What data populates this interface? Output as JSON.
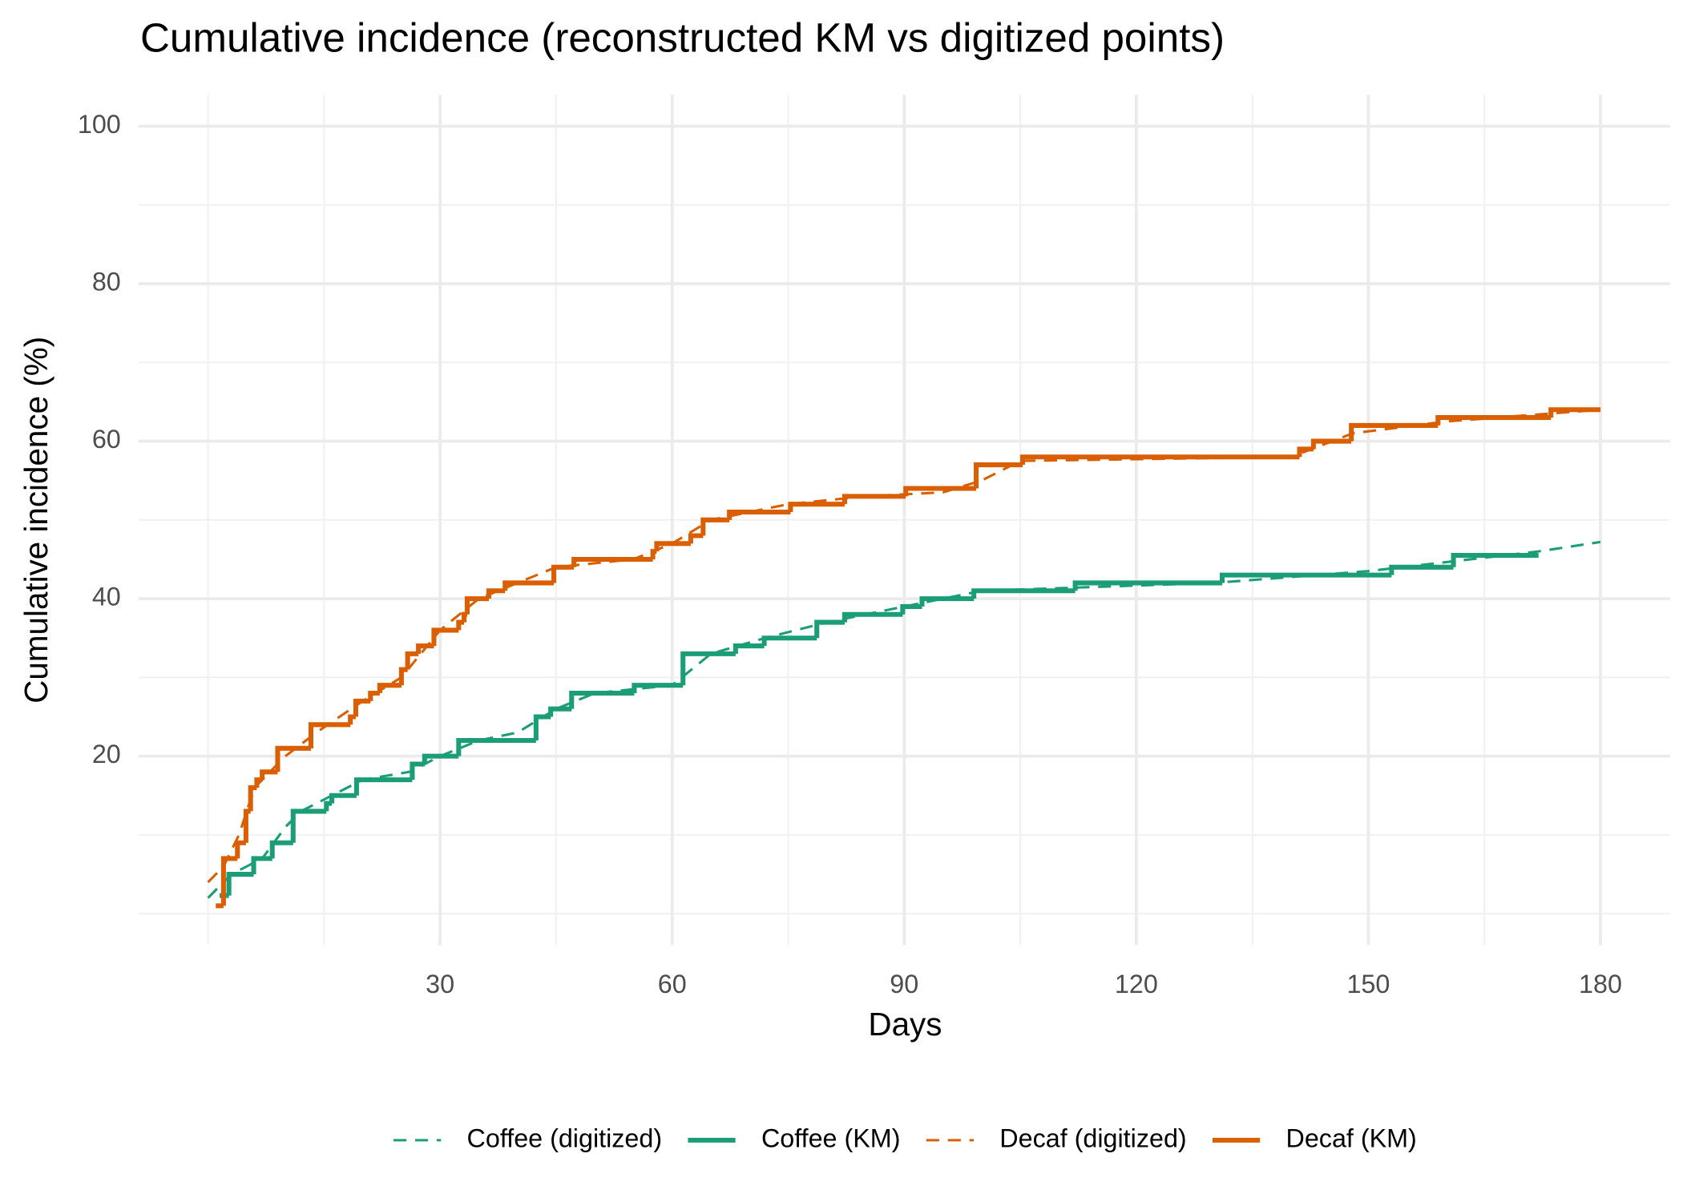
{
  "chart_data": {
    "type": "line",
    "title": "Cumulative incidence (reconstructed KM vs digitized points)",
    "x_label": "Days",
    "y_label": "Cumulative incidence (%)",
    "xlim": [
      -9,
      189
    ],
    "ylim": [
      -4,
      104
    ],
    "xticks": [
      30,
      60,
      90,
      120,
      150,
      180
    ],
    "yticks": [
      20,
      40,
      60,
      80,
      100
    ],
    "x_minor_grid": [
      0,
      15,
      45,
      75,
      105,
      135,
      165
    ],
    "y_minor_grid": [
      0,
      10,
      30,
      50,
      70,
      90
    ],
    "grid": true,
    "legend_position": "bottom",
    "series": [
      {
        "name": "Coffee (digitized)",
        "color": "#1b9e77",
        "style": "dashed",
        "x": [
          0,
          3,
          7,
          10,
          12,
          16,
          20,
          26,
          30,
          35,
          40,
          45,
          50,
          60,
          65,
          72,
          80,
          90,
          100,
          115,
          130,
          150,
          172,
          180
        ],
        "values": [
          2,
          5,
          7,
          11,
          13,
          15,
          17,
          18,
          20,
          22,
          23,
          26,
          28,
          29,
          33,
          35,
          37,
          39,
          41,
          41.5,
          42,
          43.5,
          46,
          47.2
        ]
      },
      {
        "name": "Coffee (KM)",
        "color": "#1b9e77",
        "style": "step",
        "x": [
          1.5,
          2.7,
          5.9,
          8.3,
          11,
          15.3,
          16,
          19.2,
          26.4,
          28,
          32.4,
          42.4,
          44.3,
          47,
          55.1,
          61.4,
          68.2,
          71.9,
          78.7,
          82.3,
          89.8,
          92.3,
          99,
          112.1,
          131.1,
          153,
          161,
          172
        ],
        "values": [
          2.3,
          5,
          7,
          9,
          13,
          14,
          15,
          17,
          19,
          20,
          22,
          25,
          26,
          28,
          29,
          33,
          34,
          35,
          37,
          38,
          39,
          40,
          41,
          42,
          43,
          44,
          45.5,
          45.5
        ]
      },
      {
        "name": "Decaf (digitized)",
        "color": "#d95f02",
        "style": "dashed",
        "x": [
          0,
          2,
          4,
          6,
          8,
          10,
          14,
          20,
          25,
          30,
          35,
          40,
          45,
          55,
          60,
          65,
          75,
          85,
          95,
          100,
          105,
          140,
          148,
          160,
          180
        ],
        "values": [
          4,
          6,
          10,
          16,
          18,
          20,
          23,
          27,
          30,
          36,
          40,
          42,
          44,
          45,
          47,
          50,
          52,
          53,
          53.5,
          55,
          57.5,
          58,
          61,
          62.5,
          64
        ]
      },
      {
        "name": "Decaf (KM)",
        "color": "#d95f02",
        "style": "step",
        "x": [
          1,
          2,
          3.8,
          4.9,
          5.5,
          6.3,
          7,
          9,
          13.3,
          18.4,
          19.1,
          21,
          22.2,
          25,
          25.8,
          27.2,
          29.2,
          32.4,
          33.1,
          33.5,
          36.3,
          38.4,
          44.7,
          47.3,
          57.5,
          58,
          62.4,
          64,
          67.4,
          75.3,
          82.3,
          90.2,
          99.3,
          105.3,
          141.1,
          142.9,
          147.8,
          159,
          173.6,
          180
        ],
        "values": [
          1,
          7,
          9,
          13,
          16,
          17,
          18,
          21,
          24,
          25,
          27,
          28,
          29,
          31,
          33,
          34,
          36,
          37,
          38,
          40,
          41,
          42,
          44,
          45,
          46,
          47,
          48,
          50,
          51,
          52,
          53,
          54,
          57,
          58,
          59,
          60,
          62,
          63,
          64,
          64
        ]
      }
    ]
  }
}
